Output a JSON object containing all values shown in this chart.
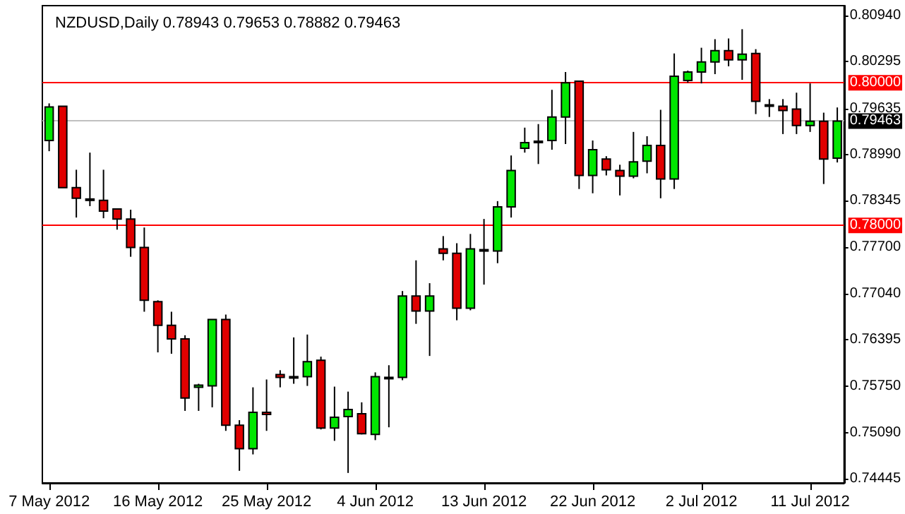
{
  "chart_data": {
    "type": "candlestick",
    "title": "NZDUSD,Daily 0.78943 0.79653 0.78882 0.79463",
    "categories": [
      "7 May 2012",
      null,
      null,
      null,
      null,
      null,
      null,
      null,
      "16 May 2012",
      null,
      null,
      null,
      null,
      null,
      null,
      null,
      "25 May 2012",
      null,
      null,
      null,
      null,
      null,
      null,
      null,
      "4 Jun 2012",
      null,
      null,
      null,
      null,
      null,
      null,
      null,
      "13 Jun 2012",
      null,
      null,
      null,
      null,
      null,
      null,
      null,
      "22 Jun 2012",
      null,
      null,
      null,
      null,
      null,
      null,
      null,
      "2 Jul 2012",
      null,
      null,
      null,
      null,
      null,
      null,
      null,
      "11 Jul 2012",
      null,
      null
    ],
    "ohlc": [
      [
        0.7919,
        0.7971,
        0.7904,
        0.7966
      ],
      [
        0.7967,
        0.7967,
        0.7853,
        0.7853
      ],
      [
        0.7853,
        0.7878,
        0.7811,
        0.7838
      ],
      [
        0.7837,
        0.7902,
        0.7827,
        0.7836
      ],
      [
        0.7835,
        0.7878,
        0.781,
        0.782
      ],
      [
        0.7823,
        0.7824,
        0.7794,
        0.7809
      ],
      [
        0.7809,
        0.7822,
        0.7756,
        0.7769
      ],
      [
        0.7769,
        0.7797,
        0.7679,
        0.7695
      ],
      [
        0.7693,
        0.7695,
        0.7622,
        0.766
      ],
      [
        0.766,
        0.7679,
        0.762,
        0.7641
      ],
      [
        0.7641,
        0.7646,
        0.754,
        0.7558
      ],
      [
        0.7573,
        0.7578,
        0.754,
        0.7576
      ],
      [
        0.7575,
        0.7668,
        0.7545,
        0.7668
      ],
      [
        0.7668,
        0.7675,
        0.7512,
        0.752
      ],
      [
        0.752,
        0.7527,
        0.7456,
        0.7487
      ],
      [
        0.7487,
        0.7573,
        0.7479,
        0.7538
      ],
      [
        0.7538,
        0.7584,
        0.7512,
        0.7535
      ],
      [
        0.7591,
        0.7597,
        0.7573,
        0.7587
      ],
      [
        0.7588,
        0.7643,
        0.7578,
        0.7587
      ],
      [
        0.7588,
        0.7647,
        0.7575,
        0.7609
      ],
      [
        0.7611,
        0.7616,
        0.7514,
        0.7516
      ],
      [
        0.7516,
        0.7574,
        0.7498,
        0.7531
      ],
      [
        0.7532,
        0.7567,
        0.7453,
        0.7542
      ],
      [
        0.7536,
        0.7552,
        0.7507,
        0.7508
      ],
      [
        0.7507,
        0.7594,
        0.7499,
        0.7588
      ],
      [
        0.7587,
        0.7604,
        0.7517,
        0.7586
      ],
      [
        0.7587,
        0.7708,
        0.7583,
        0.7701
      ],
      [
        0.7701,
        0.7751,
        0.7662,
        0.768
      ],
      [
        0.768,
        0.7719,
        0.7617,
        0.7701
      ],
      [
        0.7767,
        0.7785,
        0.7751,
        0.7761
      ],
      [
        0.7761,
        0.7775,
        0.7667,
        0.7684
      ],
      [
        0.7684,
        0.7788,
        0.7681,
        0.7767
      ],
      [
        0.7766,
        0.7809,
        0.7717,
        0.7765
      ],
      [
        0.7764,
        0.7834,
        0.7747,
        0.7826
      ],
      [
        0.7826,
        0.7898,
        0.7811,
        0.7877
      ],
      [
        0.7908,
        0.7937,
        0.7902,
        0.7916
      ],
      [
        0.7918,
        0.7942,
        0.7886,
        0.7918
      ],
      [
        0.7919,
        0.799,
        0.7906,
        0.7952
      ],
      [
        0.7952,
        0.8015,
        0.7914,
        0.8
      ],
      [
        0.8002,
        0.8003,
        0.7851,
        0.787
      ],
      [
        0.787,
        0.7919,
        0.7845,
        0.7906
      ],
      [
        0.7893,
        0.7897,
        0.787,
        0.7878
      ],
      [
        0.7877,
        0.7885,
        0.7842,
        0.7869
      ],
      [
        0.7869,
        0.7931,
        0.7866,
        0.7889
      ],
      [
        0.789,
        0.7925,
        0.7873,
        0.7912
      ],
      [
        0.7912,
        0.7962,
        0.7838,
        0.7865
      ],
      [
        0.7865,
        0.8041,
        0.7851,
        0.8009
      ],
      [
        0.8003,
        0.8017,
        0.8,
        0.8015
      ],
      [
        0.8015,
        0.8049,
        0.7999,
        0.8029
      ],
      [
        0.8029,
        0.8061,
        0.8012,
        0.8045
      ],
      [
        0.8045,
        0.8062,
        0.8023,
        0.8032
      ],
      [
        0.8032,
        0.8075,
        0.8004,
        0.804
      ],
      [
        0.8041,
        0.8047,
        0.7956,
        0.7974
      ],
      [
        0.7969,
        0.7977,
        0.7952,
        0.7967
      ],
      [
        0.7967,
        0.7977,
        0.7928,
        0.7961
      ],
      [
        0.7963,
        0.7986,
        0.7928,
        0.794
      ],
      [
        0.794,
        0.7999,
        0.7931,
        0.7946
      ],
      [
        0.7946,
        0.7958,
        0.7858,
        0.7893
      ],
      [
        0.78943,
        0.79653,
        0.78882,
        0.79463
      ]
    ],
    "ylim": [
      0.7439,
      0.8108
    ],
    "yticks": [
      {
        "value": 0.8094,
        "label": "0.80940"
      },
      {
        "value": 0.80295,
        "label": "0.80295"
      },
      {
        "value": 0.79635,
        "label": "0.79635"
      },
      {
        "value": 0.7899,
        "label": "0.78990"
      },
      {
        "value": 0.78345,
        "label": "0.78345"
      },
      {
        "value": 0.777,
        "label": "0.77700"
      },
      {
        "value": 0.7704,
        "label": "0.77040"
      },
      {
        "value": 0.76395,
        "label": "0.76395"
      },
      {
        "value": 0.7575,
        "label": "0.75750"
      },
      {
        "value": 0.7509,
        "label": "0.75090"
      },
      {
        "value": 0.74445,
        "label": "0.74445"
      }
    ],
    "ref_lines": [
      {
        "axis": "y",
        "value": 0.8,
        "label": "0.80000",
        "color": "#ff0000"
      },
      {
        "axis": "y",
        "value": 0.78,
        "label": "0.78000",
        "color": "#ff0000"
      },
      {
        "axis": "y",
        "value": 0.79463,
        "label": "0.79463",
        "color": "#c0c0c0"
      }
    ],
    "grid": false
  }
}
